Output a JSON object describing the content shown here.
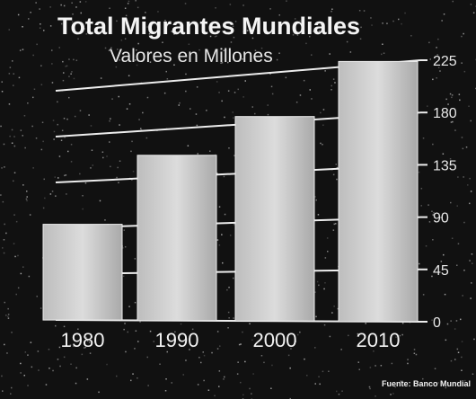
{
  "colors": {
    "background": "#111111",
    "bar": "#cfcfcf",
    "grid": "#ededed",
    "text": "#f2f2f2"
  },
  "chart_data": {
    "type": "bar",
    "title": "Total Migrantes Mundiales",
    "subtitle": "Valores en Millones",
    "categories": [
      "1980",
      "1990",
      "2000",
      "2010"
    ],
    "values": [
      93,
      155,
      185,
      227
    ],
    "ylim": [
      0,
      225
    ],
    "yticks": [
      "0",
      "45",
      "90",
      "135",
      "180",
      "225"
    ],
    "grid": true,
    "source": "Fuente: Banco Mundial"
  }
}
